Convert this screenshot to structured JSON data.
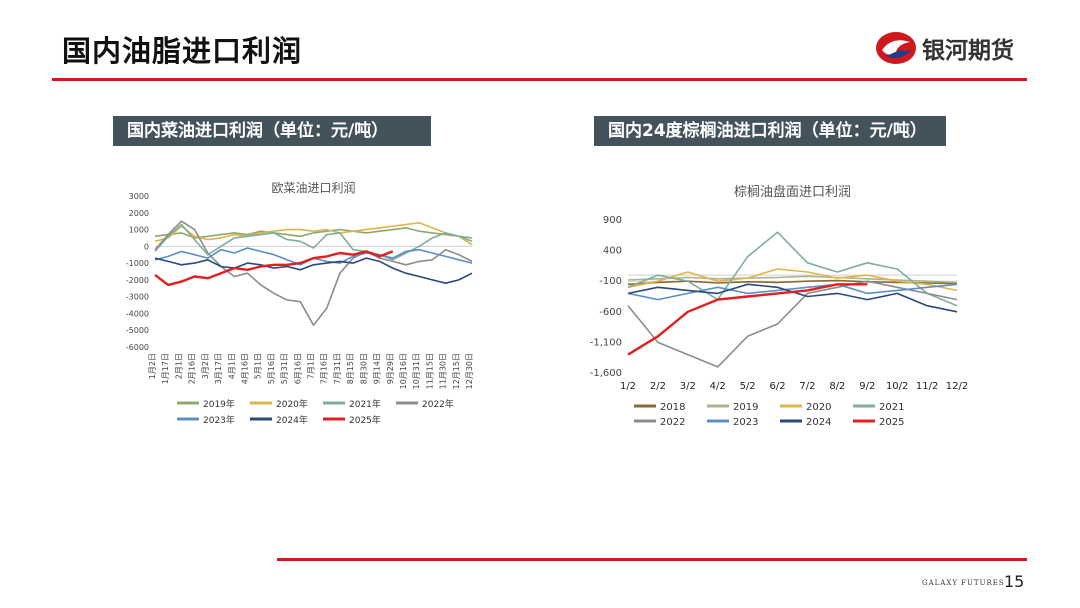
{
  "header": {
    "title": "国内油脂进口利润",
    "brand_name": "银河期货"
  },
  "sections": {
    "left_label": "国内菜油进口利润（单位：元/吨）",
    "right_label": "国内24度棕榈油进口利润（单位：元/吨）"
  },
  "footer": {
    "brand_en": "GALAXY FUTURES",
    "page_number": "15"
  },
  "colors": {
    "accent_red": "#d0191f",
    "label_bg": "#44525c"
  },
  "chart_data": [
    {
      "type": "line",
      "title": "欧菜油进口利润",
      "xlabel": "",
      "ylabel": "",
      "ylim": [
        -6000,
        3000
      ],
      "yticks": [
        3000,
        2000,
        1000,
        0,
        -1000,
        -2000,
        -3000,
        -4000,
        -5000,
        -6000
      ],
      "categories": [
        "1月2日",
        "1月17日",
        "2月1日",
        "2月16日",
        "3月2日",
        "3月17日",
        "4月1日",
        "4月16日",
        "5月1日",
        "5月16日",
        "5月31日",
        "6月16日",
        "7月1日",
        "7月16日",
        "7月31日",
        "8月15日",
        "8月30日",
        "9月14日",
        "9月29日",
        "10月16日",
        "10月31日",
        "11月15日",
        "11月30日",
        "12月15日",
        "12月30日"
      ],
      "legend_position": "bottom",
      "series": [
        {
          "name": "2019年",
          "color": "#8fa86a",
          "values": [
            600,
            700,
            800,
            500,
            600,
            700,
            800,
            700,
            900,
            800,
            700,
            600,
            800,
            900,
            1000,
            900,
            800,
            900,
            1000,
            1100,
            900,
            800,
            700,
            600,
            500
          ]
        },
        {
          "name": "2020年",
          "color": "#e0b44a",
          "values": [
            300,
            500,
            1200,
            600,
            400,
            500,
            700,
            600,
            800,
            900,
            1000,
            1000,
            900,
            1000,
            800,
            900,
            1000,
            1100,
            1200,
            1300,
            1400,
            1100,
            800,
            600,
            100
          ]
        },
        {
          "name": "2021年",
          "color": "#7fae9e",
          "values": [
            -300,
            600,
            1300,
            400,
            -500,
            0,
            500,
            600,
            700,
            800,
            400,
            300,
            -100,
            700,
            800,
            -200,
            -300,
            -500,
            -800,
            -400,
            0,
            500,
            800,
            600,
            300
          ]
        },
        {
          "name": "2022年",
          "color": "#8c8c8c",
          "values": [
            -200,
            700,
            1500,
            1000,
            -400,
            -1200,
            -1800,
            -1600,
            -2300,
            -2800,
            -3200,
            -3300,
            -4700,
            -3700,
            -1600,
            -700,
            -300,
            -700,
            -900,
            -1100,
            -900,
            -800,
            -200,
            -500,
            -900
          ]
        },
        {
          "name": "2023年",
          "color": "#5b8fc5",
          "values": [
            -800,
            -600,
            -300,
            -500,
            -700,
            -200,
            -400,
            -100,
            -300,
            -500,
            -800,
            -1100,
            -700,
            -900,
            -1000,
            -600,
            -400,
            -500,
            -700,
            -300,
            -200,
            -400,
            -600,
            -800,
            -1000
          ]
        },
        {
          "name": "2024年",
          "color": "#2a4a7a",
          "values": [
            -700,
            -900,
            -1100,
            -1000,
            -800,
            -1200,
            -1300,
            -1000,
            -1100,
            -1300,
            -1200,
            -1400,
            -1100,
            -1000,
            -900,
            -1000,
            -700,
            -900,
            -1300,
            -1600,
            -1800,
            -2000,
            -2200,
            -2000,
            -1600
          ]
        },
        {
          "name": "2025年",
          "color": "#e02020",
          "values": [
            -1700,
            -2300,
            -2100,
            -1800,
            -1900,
            -1600,
            -1300,
            -1400,
            -1200,
            -1100,
            -1100,
            -1000,
            -700,
            -600,
            -400,
            -500,
            -300,
            -600,
            -300,
            null,
            null,
            null,
            null,
            null,
            null
          ]
        }
      ]
    },
    {
      "type": "line",
      "title": "棕榈油盘面进口利润",
      "xlabel": "",
      "ylabel": "",
      "ylim": [
        -1600,
        900
      ],
      "yticks": [
        900,
        400,
        -100,
        -600,
        -1100,
        -1600
      ],
      "ytick_labels": [
        "900",
        "400",
        "-100",
        "-600",
        "-1,100",
        "-1,600"
      ],
      "categories": [
        "1/2",
        "2/2",
        "3/2",
        "4/2",
        "5/2",
        "6/2",
        "7/2",
        "8/2",
        "9/2",
        "10/2",
        "11/2",
        "12/2"
      ],
      "legend_position": "bottom",
      "series": [
        {
          "name": "2018",
          "color": "#8a6a3a",
          "values": [
            -150,
            -120,
            -100,
            -130,
            -110,
            -120,
            -100,
            -90,
            -110,
            -120,
            -130,
            -140
          ]
        },
        {
          "name": "2019",
          "color": "#a9b58a",
          "values": [
            -80,
            -60,
            -40,
            -60,
            -50,
            -40,
            -20,
            -40,
            -60,
            -80,
            -100,
            -120
          ]
        },
        {
          "name": "2020",
          "color": "#e0b44a",
          "values": [
            -200,
            -100,
            50,
            -100,
            -50,
            100,
            50,
            -50,
            0,
            -100,
            -150,
            -250
          ]
        },
        {
          "name": "2021",
          "color": "#7fae9e",
          "values": [
            -200,
            0,
            -100,
            -400,
            300,
            700,
            200,
            50,
            200,
            100,
            -300,
            -500
          ]
        },
        {
          "name": "2022",
          "color": "#8c8c8c",
          "values": [
            -500,
            -1100,
            -1300,
            -1500,
            -1000,
            -800,
            -300,
            -200,
            -100,
            -200,
            -300,
            -400
          ]
        },
        {
          "name": "2023",
          "color": "#5b8fc5",
          "values": [
            -300,
            -400,
            -300,
            -200,
            -300,
            -250,
            -200,
            -150,
            -300,
            -250,
            -200,
            -150
          ]
        },
        {
          "name": "2024",
          "color": "#2a4a7a",
          "values": [
            -300,
            -200,
            -250,
            -300,
            -150,
            -200,
            -350,
            -300,
            -400,
            -300,
            -500,
            -600
          ]
        },
        {
          "name": "2025",
          "color": "#e02020",
          "values": [
            -1300,
            -1000,
            -600,
            -400,
            -350,
            -300,
            -250,
            -150,
            -150,
            null,
            null,
            null
          ]
        }
      ]
    }
  ]
}
